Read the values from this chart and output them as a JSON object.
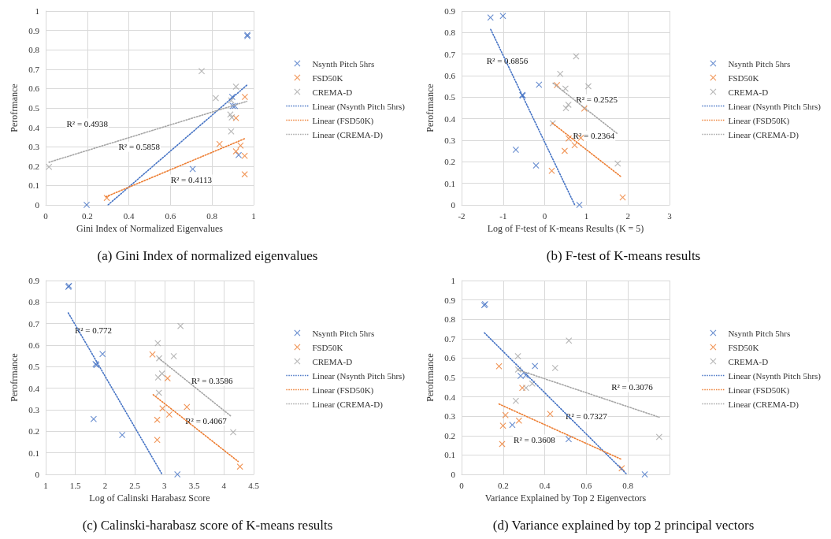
{
  "chart_data": [
    {
      "type": "scatter",
      "title": "(a) Gini Index of normalized eigenvalues",
      "xlabel": "Gini Index of Normalized Eigenvalues",
      "ylabel": "Perofrmance",
      "xlim": [
        0,
        1
      ],
      "xticks": [
        0,
        0.2,
        0.4,
        0.6,
        0.8,
        1
      ],
      "ylim": [
        0,
        1
      ],
      "yticks": [
        0,
        0.1,
        0.2,
        0.3,
        0.4,
        0.5,
        0.6,
        0.7,
        0.8,
        0.9,
        1
      ],
      "grid": true,
      "legend": "right",
      "marker": "cross",
      "annotations": [
        "R² = 0.5858",
        "R² = 0.4113",
        "R² = 0.4938"
      ],
      "series": [
        {
          "name": "Nsynth Pitch 5hrs",
          "color": "#4472c4",
          "x": [
            0.97,
            0.97,
            0.897,
            0.9,
            0.91,
            0.928,
            0.707,
            0.197
          ],
          "values": [
            0.877,
            0.871,
            0.557,
            0.51,
            0.51,
            0.257,
            0.185,
            0.0
          ]
        },
        {
          "name": "FSD50K",
          "color": "#ed7d31",
          "x": [
            0.958,
            0.915,
            0.836,
            0.937,
            0.915,
            0.957,
            0.957,
            0.294
          ],
          "values": [
            0.557,
            0.448,
            0.314,
            0.306,
            0.276,
            0.253,
            0.158,
            0.036
          ]
        },
        {
          "name": "CREMA-D",
          "color": "#a5a5a5",
          "x": [
            0.75,
            0.915,
            0.818,
            0.892,
            0.888,
            0.895,
            0.892,
            0.016
          ],
          "values": [
            0.69,
            0.61,
            0.551,
            0.539,
            0.466,
            0.451,
            0.379,
            0.196
          ]
        },
        {
          "type": "line",
          "name": "Linear (Nsynth Pitch 5hrs)",
          "color": "#4472c4",
          "marker": "none",
          "line_style": "dotted",
          "x": [
            0.3,
            0.97
          ],
          "values": [
            0,
            0.62
          ]
        },
        {
          "type": "line",
          "name": "Linear (FSD50K)",
          "color": "#ed7d31",
          "marker": "none",
          "line_style": "dotted",
          "x": [
            0.29,
            0.96
          ],
          "values": [
            0.042,
            0.343
          ]
        },
        {
          "type": "line",
          "name": "Linear (CREMA-D)",
          "color": "#a5a5a5",
          "marker": "none",
          "line_style": "dotted",
          "x": [
            0.016,
            0.967
          ],
          "values": [
            0.22,
            0.534
          ]
        }
      ]
    },
    {
      "type": "scatter",
      "title": "(b) F-test of K-means results",
      "xlabel": "Log of F-test of K-means Results (K = 5)",
      "ylabel": "Perofrmance",
      "xlim": [
        -2,
        3
      ],
      "xticks": [
        -2,
        -1,
        0,
        1,
        2,
        3
      ],
      "ylim": [
        0,
        0.9
      ],
      "yticks": [
        0,
        0.1,
        0.2,
        0.3,
        0.4,
        0.5,
        0.6,
        0.7,
        0.8,
        0.9
      ],
      "grid": true,
      "legend": "right",
      "marker": "cross",
      "annotations": [
        "R² = 0.6856",
        "R² = 0.2364",
        "R² = 0.2525"
      ],
      "series": [
        {
          "name": "Nsynth Pitch 5hrs",
          "color": "#4472c4",
          "x": [
            -1.305,
            -1.006,
            -0.138,
            -0.54,
            -0.53,
            -0.695,
            -0.21,
            0.832
          ],
          "values": [
            0.87,
            0.877,
            0.558,
            0.51,
            0.508,
            0.256,
            0.183,
            0.0
          ]
        },
        {
          "name": "FSD50K",
          "color": "#ed7d31",
          "x": [
            0.293,
            0.952,
            0.575,
            0.868,
            0.719,
            0.479,
            0.168,
            1.874
          ],
          "values": [
            0.556,
            0.447,
            0.308,
            0.311,
            0.277,
            0.251,
            0.158,
            0.035
          ]
        },
        {
          "name": "CREMA-D",
          "color": "#a5a5a5",
          "x": [
            0.754,
            0.371,
            1.048,
            0.497,
            0.569,
            0.509,
            0.192,
            1.754
          ],
          "values": [
            0.69,
            0.608,
            0.551,
            0.54,
            0.465,
            0.449,
            0.379,
            0.192
          ]
        },
        {
          "type": "line",
          "name": "Linear (Nsynth Pitch 5hrs)",
          "color": "#4472c4",
          "marker": "none",
          "line_style": "dotted",
          "x": [
            -1.3,
            0.72
          ],
          "values": [
            0.815,
            0
          ]
        },
        {
          "type": "line",
          "name": "Linear (FSD50K)",
          "color": "#ed7d31",
          "marker": "none",
          "line_style": "dotted",
          "x": [
            0.18,
            1.84
          ],
          "values": [
            0.38,
            0.13
          ]
        },
        {
          "type": "line",
          "name": "Linear (CREMA-D)",
          "color": "#a5a5a5",
          "marker": "none",
          "line_style": "dotted",
          "x": [
            0.2,
            1.75
          ],
          "values": [
            0.565,
            0.33
          ]
        }
      ]
    },
    {
      "type": "scatter",
      "title": "(c) Calinski-harabasz score of K-means results",
      "xlabel": "Log of Calinski Harabasz Score",
      "ylabel": "Perofrmance",
      "xlim": [
        1,
        4.5
      ],
      "xticks": [
        1,
        1.5,
        2,
        2.5,
        3,
        3.5,
        4,
        4.5
      ],
      "ylim": [
        0,
        0.9
      ],
      "yticks": [
        0,
        0.1,
        0.2,
        0.3,
        0.4,
        0.5,
        0.6,
        0.7,
        0.8,
        0.9
      ],
      "grid": true,
      "legend": "right",
      "marker": "cross",
      "annotations": [
        "R² = 0.772",
        "R² = 0.4067",
        "R² = 0.3586"
      ],
      "series": [
        {
          "name": "Nsynth Pitch 5hrs",
          "color": "#4472c4",
          "x": [
            1.382,
            1.392,
            1.957,
            1.84,
            1.854,
            1.807,
            2.288,
            3.217
          ],
          "values": [
            0.871,
            0.875,
            0.559,
            0.512,
            0.508,
            0.257,
            0.183,
            0.0
          ]
        },
        {
          "name": "FSD50K",
          "color": "#ed7d31",
          "x": [
            2.797,
            3.052,
            2.967,
            3.377,
            3.08,
            2.877,
            2.877,
            4.27
          ],
          "values": [
            0.557,
            0.446,
            0.306,
            0.313,
            0.278,
            0.253,
            0.16,
            0.036
          ]
        },
        {
          "name": "CREMA-D",
          "color": "#a5a5a5",
          "x": [
            3.269,
            2.887,
            3.156,
            2.91,
            2.958,
            2.892,
            2.906,
            4.156
          ],
          "values": [
            0.689,
            0.609,
            0.549,
            0.539,
            0.468,
            0.45,
            0.379,
            0.196
          ]
        },
        {
          "type": "line",
          "name": "Linear (Nsynth Pitch 5hrs)",
          "color": "#4472c4",
          "marker": "none",
          "line_style": "dotted",
          "x": [
            1.38,
            2.96
          ],
          "values": [
            0.75,
            0
          ]
        },
        {
          "type": "line",
          "name": "Linear (FSD50K)",
          "color": "#ed7d31",
          "marker": "none",
          "line_style": "dotted",
          "x": [
            2.81,
            4.24
          ],
          "values": [
            0.37,
            0.06
          ]
        },
        {
          "type": "line",
          "name": "Linear (CREMA-D)",
          "color": "#a5a5a5",
          "marker": "none",
          "line_style": "dotted",
          "x": [
            2.9,
            4.12
          ],
          "values": [
            0.54,
            0.27
          ]
        }
      ]
    },
    {
      "type": "scatter",
      "title": "(d) Variance explained by top 2 principal vectors",
      "xlabel": "Variance Explained by Top 2 Eigenvectors",
      "ylabel": "Perofrmance",
      "xlim": [
        0,
        1
      ],
      "xticks": [
        0,
        0.2,
        0.4,
        0.6,
        0.8,
        {
          "value": 1,
          "label": null
        }
      ],
      "ylim": [
        0,
        1
      ],
      "yticks": [
        0,
        0.1,
        0.2,
        0.3,
        0.4,
        0.5,
        0.6,
        0.7,
        0.8,
        0.9,
        1
      ],
      "grid": true,
      "legend": "right",
      "marker": "cross",
      "annotations": [
        "R² = 0.7327",
        "R² = 0.3608",
        "R² = 0.3076"
      ],
      "series": [
        {
          "name": "Nsynth Pitch 5hrs",
          "color": "#4472c4",
          "x": [
            0.109,
            0.113,
            0.353,
            0.284,
            0.309,
            0.244,
            0.515,
            0.881
          ],
          "values": [
            0.873,
            0.878,
            0.559,
            0.508,
            0.511,
            0.255,
            0.182,
            0.0
          ]
        },
        {
          "name": "FSD50K",
          "color": "#ed7d31",
          "x": [
            0.18,
            0.292,
            0.426,
            0.211,
            0.276,
            0.199,
            0.195,
            0.77
          ],
          "values": [
            0.558,
            0.446,
            0.312,
            0.306,
            0.277,
            0.251,
            0.157,
            0.032
          ]
        },
        {
          "name": "CREMA-D",
          "color": "#a5a5a5",
          "x": [
            0.516,
            0.271,
            0.45,
            0.272,
            0.34,
            0.31,
            0.261,
            0.95
          ],
          "values": [
            0.69,
            0.61,
            0.549,
            0.541,
            0.468,
            0.446,
            0.379,
            0.193
          ]
        },
        {
          "type": "line",
          "name": "Linear (Nsynth Pitch 5hrs)",
          "color": "#4472c4",
          "marker": "none",
          "line_style": "dotted",
          "x": [
            0.11,
            0.795
          ],
          "values": [
            0.73,
            0
          ]
        },
        {
          "type": "line",
          "name": "Linear (FSD50K)",
          "color": "#ed7d31",
          "marker": "none",
          "line_style": "dotted",
          "x": [
            0.18,
            0.77
          ],
          "values": [
            0.363,
            0.077
          ]
        },
        {
          "type": "line",
          "name": "Linear (CREMA-D)",
          "color": "#a5a5a5",
          "marker": "none",
          "line_style": "dotted",
          "x": [
            0.27,
            0.95
          ],
          "values": [
            0.54,
            0.295
          ]
        }
      ]
    }
  ]
}
